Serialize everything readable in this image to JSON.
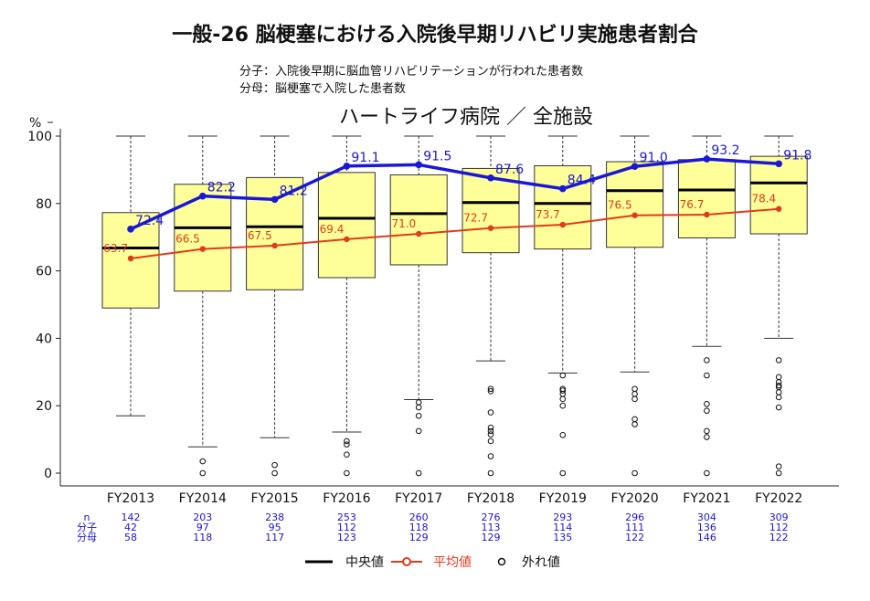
{
  "header": {
    "title": "一般-26 脳梗塞における入院後早期リハビリ実施患者割合",
    "numerator": "分子：入院後早期に脳血管リハビリテーションが行われた患者数",
    "denominator": "分母：脳梗塞で入院した患者数",
    "hospital_heading": "ハートライフ病院 ／ 全施設"
  },
  "colors": {
    "box_fill": "#ffff99",
    "hospital_line": "#1b17d8",
    "mean_line": "#e23a1c",
    "median_line": "#000000",
    "count_text": "#1b17d8"
  },
  "chart_data": {
    "type": "box",
    "y_unit": "%",
    "ylim": [
      0,
      100
    ],
    "y_ticks": [
      0,
      20,
      40,
      60,
      80,
      100
    ],
    "categories": [
      "FY2013",
      "FY2014",
      "FY2015",
      "FY2016",
      "FY2017",
      "FY2018",
      "FY2019",
      "FY2020",
      "FY2021",
      "FY2022"
    ],
    "boxes": [
      {
        "whisker_low": 17,
        "q1": 49,
        "median": 66.8,
        "q3": 77.3,
        "whisker_high": 100,
        "outliers": []
      },
      {
        "whisker_low": 7.8,
        "q1": 54,
        "median": 72.8,
        "q3": 85.7,
        "whisker_high": 100,
        "outliers": [
          3.5,
          0
        ]
      },
      {
        "whisker_low": 10.5,
        "q1": 54.4,
        "median": 73.1,
        "q3": 87.7,
        "whisker_high": 100,
        "outliers": [
          2.4,
          0
        ]
      },
      {
        "whisker_low": 12.2,
        "q1": 58,
        "median": 75.6,
        "q3": 89.2,
        "whisker_high": 100,
        "outliers": [
          9.5,
          8.5,
          5.5,
          0
        ]
      },
      {
        "whisker_low": 21.8,
        "q1": 61.8,
        "median": 77,
        "q3": 88.5,
        "whisker_high": 100,
        "outliers": [
          21,
          19.5,
          17,
          12.5,
          0
        ]
      },
      {
        "whisker_low": 33.3,
        "q1": 65.4,
        "median": 80.3,
        "q3": 90.4,
        "whisker_high": 100,
        "outliers": [
          25,
          24.3,
          18,
          13.5,
          12.5,
          11.5,
          9.5,
          5,
          0
        ]
      },
      {
        "whisker_low": 29.7,
        "q1": 66.5,
        "median": 80,
        "q3": 91.2,
        "whisker_high": 100,
        "outliers": [
          29,
          25,
          24.5,
          23.5,
          22,
          20,
          11.3,
          0
        ]
      },
      {
        "whisker_low": 30,
        "q1": 67,
        "median": 83.8,
        "q3": 92.4,
        "whisker_high": 100,
        "outliers": [
          25,
          23.5,
          22,
          16,
          14.5,
          0
        ]
      },
      {
        "whisker_low": 37.6,
        "q1": 69.8,
        "median": 84,
        "q3": 93,
        "whisker_high": 100,
        "outliers": [
          33.5,
          29,
          20.5,
          18.5,
          12.5,
          10.7,
          0
        ]
      },
      {
        "whisker_low": 40,
        "q1": 71,
        "median": 86.1,
        "q3": 94,
        "whisker_high": 100,
        "outliers": [
          33.5,
          28.5,
          27,
          26,
          25.5,
          24,
          22.5,
          19.5,
          2,
          0
        ]
      }
    ],
    "series": [
      {
        "name": "平均値",
        "values": [
          63.7,
          66.5,
          67.5,
          69.4,
          71.0,
          72.7,
          73.7,
          76.5,
          76.7,
          78.4
        ],
        "labels": [
          "63.7",
          "66.5",
          "67.5",
          "69.4",
          "71.0",
          "72.7",
          "73.7",
          "76.5",
          "76.7",
          "78.4"
        ]
      },
      {
        "values": [
          72.4,
          82.2,
          81.2,
          91.1,
          91.5,
          87.6,
          84.4,
          91.0,
          93.2,
          91.8
        ],
        "labels": [
          "72.4",
          "82.2",
          "81.2",
          "91.1",
          "91.5",
          "87.6",
          "84.4",
          "91.0",
          "93.2",
          "91.8"
        ]
      }
    ],
    "counts": {
      "row_labels": [
        "n",
        "分子",
        "分母"
      ],
      "n": [
        "142",
        "203",
        "238",
        "253",
        "260",
        "276",
        "293",
        "296",
        "304",
        "309"
      ],
      "numerator": [
        "42",
        "97",
        "95",
        "112",
        "118",
        "113",
        "114",
        "111",
        "136",
        "112"
      ],
      "denominator": [
        "58",
        "118",
        "117",
        "123",
        "129",
        "129",
        "135",
        "122",
        "146",
        "122"
      ]
    },
    "legend": {
      "position": "bottom",
      "items": [
        "中央値",
        "平均値",
        "外れ値"
      ]
    }
  }
}
